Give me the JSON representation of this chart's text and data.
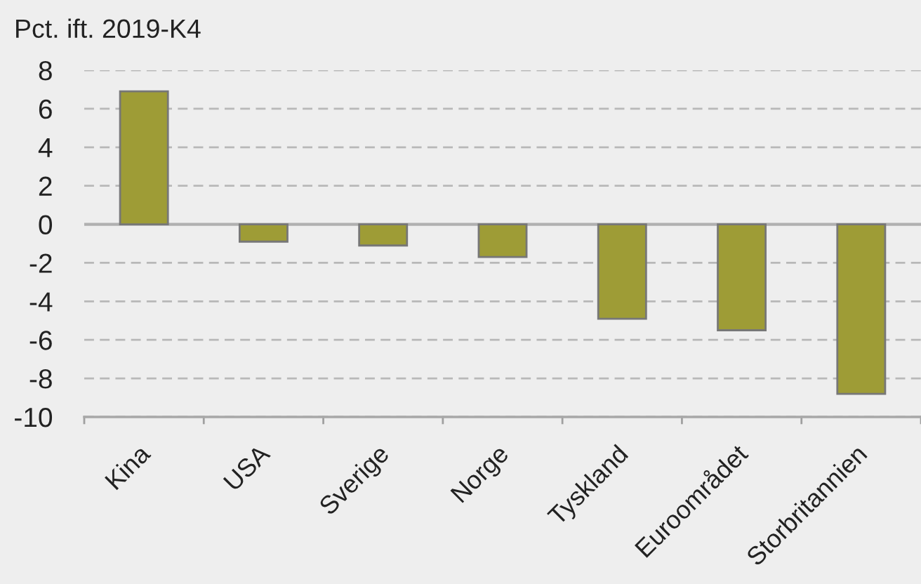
{
  "chart_data": {
    "type": "bar",
    "ylabel": "Pct. ift. 2019-K4",
    "categories": [
      "Kina",
      "USA",
      "Sverige",
      "Norge",
      "Tyskland",
      "Euroområdet",
      "Storbritannien"
    ],
    "values": [
      6.9,
      -0.9,
      -1.1,
      -1.7,
      -4.9,
      -5.5,
      -8.8
    ],
    "color": "#9e9c36",
    "ylim": [
      -10,
      8
    ],
    "yticks": [
      -10,
      -8,
      -6,
      -4,
      -2,
      0,
      2,
      4,
      6,
      8
    ],
    "grid": "y",
    "ref_lines": [
      {
        "axis": "y",
        "value": 0,
        "color": "#b0b0b0",
        "line_style": "solid"
      }
    ]
  }
}
